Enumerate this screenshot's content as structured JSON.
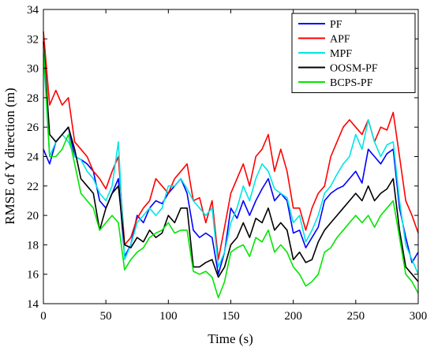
{
  "chart_data": {
    "type": "line",
    "xlabel": "Time (s)",
    "ylabel": "RMSE of Y direction (m)",
    "xlim": [
      0,
      300
    ],
    "ylim": [
      14,
      34
    ],
    "xticks": [
      0,
      50,
      100,
      150,
      200,
      250,
      300
    ],
    "yticks": [
      14,
      16,
      18,
      20,
      22,
      24,
      26,
      28,
      30,
      32,
      34
    ],
    "grid": false,
    "legend_position": "top-right",
    "x": [
      0,
      5,
      10,
      15,
      20,
      25,
      30,
      35,
      40,
      45,
      50,
      55,
      60,
      65,
      70,
      75,
      80,
      85,
      90,
      95,
      100,
      105,
      110,
      115,
      120,
      125,
      130,
      135,
      140,
      145,
      150,
      155,
      160,
      165,
      170,
      175,
      180,
      185,
      190,
      195,
      200,
      205,
      210,
      215,
      220,
      225,
      230,
      235,
      240,
      245,
      250,
      255,
      260,
      265,
      270,
      275,
      280,
      285,
      290,
      295,
      300
    ],
    "series": [
      {
        "name": "PF",
        "color": "#0000ff",
        "values": [
          24.5,
          23.5,
          25.0,
          25.5,
          26.0,
          24.0,
          23.8,
          23.5,
          23.0,
          21.0,
          20.5,
          21.5,
          22.5,
          17.2,
          18.0,
          20.0,
          19.5,
          20.5,
          21.0,
          20.8,
          21.5,
          22.0,
          22.5,
          21.5,
          19.0,
          18.5,
          18.8,
          18.5,
          16.0,
          17.5,
          20.5,
          19.8,
          21.0,
          20.0,
          21.0,
          21.8,
          22.5,
          21.0,
          21.5,
          21.0,
          18.8,
          19.0,
          17.8,
          18.5,
          19.2,
          21.0,
          21.5,
          21.8,
          22.0,
          22.5,
          23.0,
          22.2,
          24.5,
          24.0,
          23.5,
          24.2,
          24.5,
          20.5,
          18.5,
          16.8,
          17.5
        ]
      },
      {
        "name": "APF",
        "color": "#ff0000",
        "values": [
          32.5,
          27.5,
          28.5,
          27.5,
          28.0,
          25.0,
          24.5,
          24.0,
          23.0,
          22.5,
          21.8,
          23.0,
          24.0,
          18.0,
          18.5,
          19.8,
          20.5,
          21.0,
          22.5,
          22.0,
          21.5,
          22.5,
          23.0,
          23.5,
          21.0,
          21.2,
          19.5,
          21.0,
          17.0,
          19.2,
          21.5,
          22.5,
          23.5,
          22.0,
          24.0,
          24.5,
          25.5,
          23.0,
          24.5,
          23.0,
          20.5,
          20.5,
          19.0,
          20.5,
          21.5,
          22.0,
          24.0,
          25.0,
          26.0,
          26.5,
          26.0,
          25.5,
          26.5,
          25.0,
          26.0,
          25.8,
          27.0,
          24.0,
          21.0,
          20.0,
          18.8
        ]
      },
      {
        "name": "MPF",
        "color": "#00e5e5",
        "values": [
          31.0,
          24.0,
          25.0,
          25.5,
          25.0,
          24.0,
          23.8,
          23.0,
          22.5,
          21.5,
          21.0,
          22.0,
          25.0,
          17.0,
          18.0,
          19.5,
          20.0,
          20.5,
          20.0,
          20.5,
          22.0,
          22.0,
          22.5,
          21.8,
          21.0,
          20.5,
          20.0,
          20.5,
          16.5,
          17.5,
          19.5,
          20.5,
          22.0,
          21.0,
          22.5,
          23.5,
          23.0,
          21.8,
          21.5,
          21.2,
          19.5,
          20.0,
          18.2,
          19.0,
          20.0,
          21.5,
          22.0,
          22.8,
          23.5,
          24.0,
          25.5,
          24.5,
          26.5,
          25.0,
          24.0,
          24.8,
          25.0,
          21.0,
          18.0,
          17.0,
          16.0
        ]
      },
      {
        "name": "OOSM-PF",
        "color": "#000000",
        "values": [
          31.8,
          25.5,
          25.0,
          25.5,
          26.0,
          24.5,
          22.5,
          22.0,
          21.5,
          19.0,
          20.5,
          21.5,
          22.0,
          18.0,
          17.8,
          18.5,
          18.2,
          19.0,
          18.5,
          18.8,
          20.0,
          19.5,
          20.5,
          20.5,
          16.5,
          16.5,
          16.8,
          17.0,
          15.8,
          16.5,
          18.0,
          18.5,
          19.5,
          18.5,
          19.8,
          19.5,
          20.5,
          19.0,
          19.5,
          19.0,
          17.0,
          17.5,
          16.8,
          17.0,
          18.2,
          19.0,
          19.5,
          20.0,
          20.5,
          21.0,
          21.5,
          21.0,
          22.0,
          21.0,
          21.5,
          21.8,
          22.5,
          19.0,
          16.5,
          16.0,
          15.5
        ]
      },
      {
        "name": "BCPS-PF",
        "color": "#00e600",
        "values": [
          31.5,
          24.0,
          24.0,
          24.5,
          25.5,
          23.5,
          21.5,
          21.0,
          20.5,
          19.0,
          19.5,
          20.0,
          19.5,
          16.3,
          17.0,
          17.5,
          17.8,
          18.5,
          18.8,
          19.0,
          19.5,
          18.8,
          19.0,
          19.0,
          16.2,
          16.0,
          16.2,
          15.8,
          14.4,
          15.5,
          17.5,
          17.8,
          18.0,
          17.2,
          18.5,
          18.2,
          19.0,
          17.5,
          18.0,
          17.5,
          16.5,
          16.0,
          15.2,
          15.5,
          16.0,
          17.5,
          17.8,
          18.5,
          19.0,
          19.5,
          20.0,
          19.5,
          20.0,
          19.2,
          20.0,
          20.5,
          21.0,
          18.5,
          16.0,
          15.5,
          14.7
        ]
      }
    ]
  }
}
